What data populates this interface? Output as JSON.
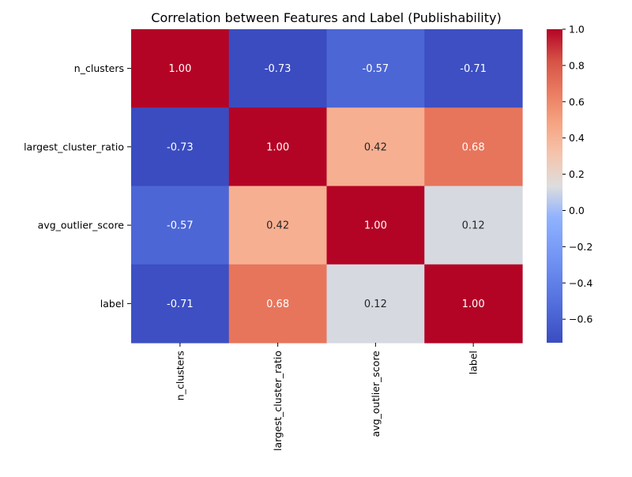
{
  "chart_data": {
    "type": "heatmap",
    "title": "Correlation between Features and Label (Publishability)",
    "xlabel": "",
    "ylabel": "",
    "rows": [
      "n_clusters",
      "largest_cluster_ratio",
      "avg_outlier_score",
      "label"
    ],
    "columns": [
      "n_clusters",
      "largest_cluster_ratio",
      "avg_outlier_score",
      "label"
    ],
    "values": [
      [
        1.0,
        -0.73,
        -0.57,
        -0.71
      ],
      [
        -0.73,
        1.0,
        0.42,
        0.68
      ],
      [
        -0.57,
        0.42,
        1.0,
        0.12
      ],
      [
        -0.71,
        0.68,
        0.12,
        1.0
      ]
    ],
    "annotations": [
      [
        "1.00",
        "-0.73",
        "-0.57",
        "-0.71"
      ],
      [
        "-0.73",
        "1.00",
        "0.42",
        "0.68"
      ],
      [
        "-0.57",
        "0.42",
        "1.00",
        "0.12"
      ],
      [
        "-0.71",
        "0.68",
        "0.12",
        "1.00"
      ]
    ],
    "colormap": "coolwarm",
    "colorbar": {
      "range": [
        -0.73,
        1.0
      ],
      "ticks": [
        -0.6,
        -0.4,
        -0.2,
        0.0,
        0.2,
        0.4,
        0.6,
        0.8,
        1.0
      ],
      "tick_labels": [
        "−0.6",
        "−0.4",
        "−0.2",
        "0.0",
        "0.2",
        "0.4",
        "0.6",
        "0.8",
        "1.0"
      ]
    },
    "grid": false,
    "legend": "colorbar-right"
  }
}
